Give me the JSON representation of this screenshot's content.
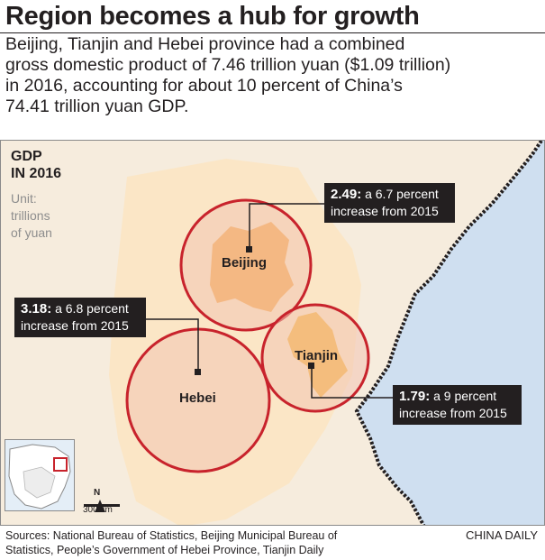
{
  "header": {
    "title": "Region becomes a hub for growth",
    "intro_lines": [
      "Beijing, Tianjin and Hebei province had a combined",
      "gross domestic product of 7.46 trillion yuan ($1.09 trillion)",
      "in 2016, accounting for about 10 percent of China’s",
      "74.41 trillion yuan GDP."
    ]
  },
  "map": {
    "heading_lines": [
      "GDP",
      "IN 2016"
    ],
    "unit_lines": [
      "Unit:",
      "trillions",
      "of yuan"
    ],
    "regions": [
      {
        "name": "Beijing",
        "gdp": "2.49:",
        "note_line1": "a 6.7 percent",
        "note_line2": "increase from 2015"
      },
      {
        "name": "Hebei",
        "gdp": "3.18:",
        "note_line1": "a 6.8 percent",
        "note_line2": "increase from 2015"
      },
      {
        "name": "Tianjin",
        "gdp": "1.79:",
        "note_line1": "a 9 percent",
        "note_line2": "increase from 2015"
      }
    ],
    "north_label": "N",
    "scale_label": "300 km",
    "colors": {
      "land": "#f6ecdd",
      "sea": "#cfdff0",
      "beijing_fill": "#f6a84a",
      "tianjin_fill": "#f6b43c",
      "circle_stroke": "#c8232c",
      "circle_fill": "#f2c5b2",
      "callout_bg": "#231f20"
    }
  },
  "footer": {
    "source_lines": [
      "Sources: National Bureau of Statistics, Beijing Municipal Bureau of",
      "Statistics, People’s Government of Hebei Province, Tianjin Daily"
    ],
    "credit": "CHINA DAILY"
  }
}
